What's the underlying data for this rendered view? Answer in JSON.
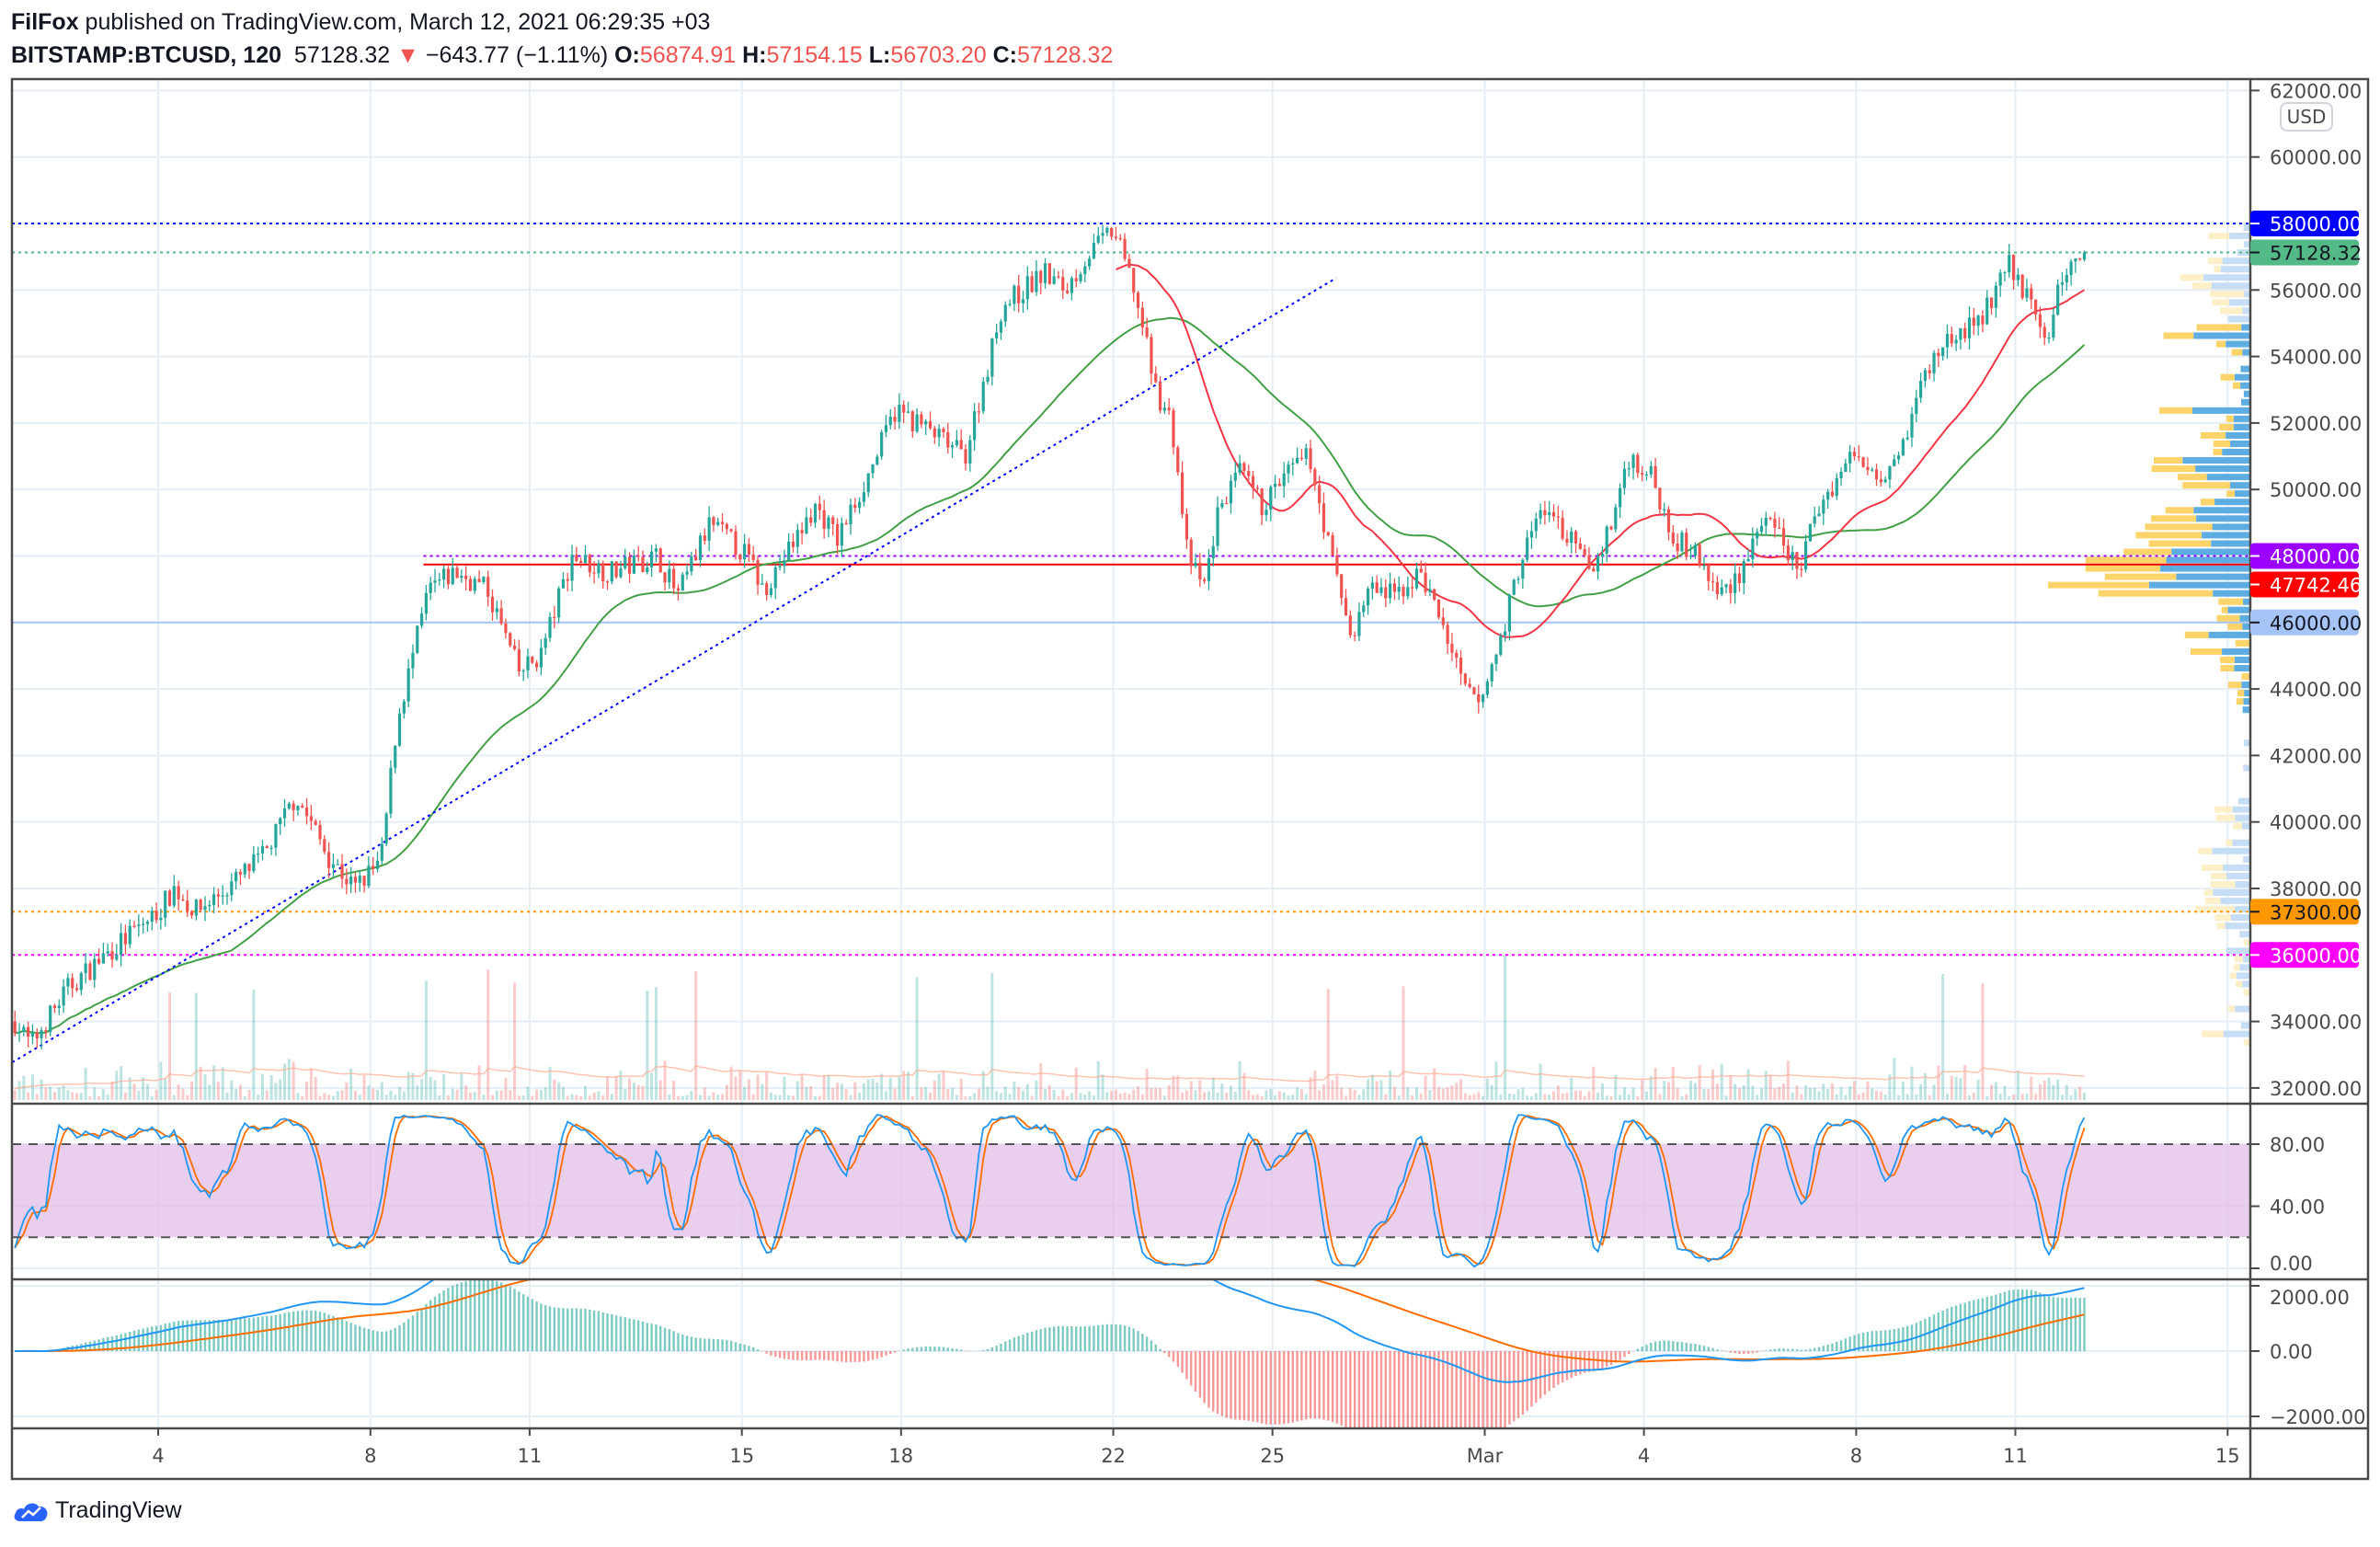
{
  "header": {
    "author": "FilFox",
    "published": " published on TradingView.com, March 12, 2021 06:29:35 +03",
    "symbol": "BITSTAMP:BTCUSD, 120",
    "last": "57128.32",
    "change": "−643.77 (−1.11%)",
    "o_label": "O:",
    "o": "56874.91",
    "h_label": "H:",
    "h": "57154.15",
    "l_label": "L:",
    "l": "56703.20",
    "c_label": "C:",
    "c": "57128.32"
  },
  "currency_badge": "USD",
  "brand": "TradingView",
  "colors": {
    "up": "#26a69a",
    "down": "#ef5350",
    "ma_green": "#43a047",
    "ma_red": "#f23645",
    "stoch_k": "#2196f3",
    "stoch_d": "#ff6d00",
    "band": "#e1bee7"
  },
  "chart_data": {
    "type": "candlestick",
    "price_axis_labels": [
      "62000.00",
      "60000.00",
      "58000.00",
      "56000.00",
      "54000.00",
      "52000.00",
      "50000.00",
      "48000.00",
      "46000.00",
      "44000.00",
      "42000.00",
      "40000.00",
      "38000.00",
      "36000.00",
      "34000.00",
      "32000.00"
    ],
    "price_axis_values": [
      62000,
      60000,
      58000,
      56000,
      54000,
      52000,
      50000,
      48000,
      46000,
      44000,
      42000,
      40000,
      38000,
      36000,
      34000,
      32000
    ],
    "time_axis": [
      {
        "day": 4,
        "label": "4"
      },
      {
        "day": 8,
        "label": "8"
      },
      {
        "day": 11,
        "label": "11"
      },
      {
        "day": 15,
        "label": "15"
      },
      {
        "day": 18,
        "label": "18"
      },
      {
        "day": 22,
        "label": "22"
      },
      {
        "day": 25,
        "label": "25"
      },
      {
        "day": 29,
        "label": "Mar"
      },
      {
        "day": 32,
        "label": "4"
      },
      {
        "day": 36,
        "label": "8"
      },
      {
        "day": 39,
        "label": "11"
      },
      {
        "day": 43,
        "label": "15"
      }
    ],
    "price_path": [
      [
        1.3,
        34000
      ],
      [
        1.6,
        33300
      ],
      [
        2.3,
        35000
      ],
      [
        3.0,
        36000
      ],
      [
        4.0,
        37300
      ],
      [
        4.3,
        38000
      ],
      [
        4.7,
        37300
      ],
      [
        5.3,
        38000
      ],
      [
        6.0,
        39000
      ],
      [
        6.6,
        40800
      ],
      [
        7.2,
        39000
      ],
      [
        7.7,
        38000
      ],
      [
        8.2,
        38800
      ],
      [
        8.5,
        43000
      ],
      [
        9.1,
        47000
      ],
      [
        9.6,
        47500
      ],
      [
        10.2,
        47000
      ],
      [
        10.8,
        44500
      ],
      [
        11.2,
        45000
      ],
      [
        11.8,
        48000
      ],
      [
        12.5,
        47500
      ],
      [
        13.4,
        48000
      ],
      [
        13.8,
        46800
      ],
      [
        14.4,
        49000
      ],
      [
        15.1,
        48000
      ],
      [
        15.4,
        47000
      ],
      [
        15.9,
        48200
      ],
      [
        16.4,
        49500
      ],
      [
        16.8,
        48500
      ],
      [
        17.4,
        50500
      ],
      [
        17.9,
        52400
      ],
      [
        18.5,
        51800
      ],
      [
        19.2,
        51000
      ],
      [
        19.6,
        53500
      ],
      [
        19.9,
        55500
      ],
      [
        20.7,
        56500
      ],
      [
        21.1,
        56000
      ],
      [
        21.5,
        57000
      ],
      [
        22.0,
        57800
      ],
      [
        22.4,
        56000
      ],
      [
        22.8,
        53000
      ],
      [
        23.1,
        52000
      ],
      [
        23.4,
        48000
      ],
      [
        23.7,
        47000
      ],
      [
        24.0,
        49500
      ],
      [
        24.4,
        50500
      ],
      [
        24.8,
        49500
      ],
      [
        25.3,
        50500
      ],
      [
        25.7,
        51000
      ],
      [
        26.1,
        48000
      ],
      [
        26.5,
        45500
      ],
      [
        26.8,
        47000
      ],
      [
        27.3,
        46800
      ],
      [
        27.8,
        47500
      ],
      [
        28.3,
        45500
      ],
      [
        28.6,
        44000
      ],
      [
        28.9,
        43500
      ],
      [
        29.3,
        45500
      ],
      [
        29.7,
        48000
      ],
      [
        30.1,
        49500
      ],
      [
        30.6,
        48500
      ],
      [
        31.0,
        47500
      ],
      [
        31.4,
        49000
      ],
      [
        31.7,
        51000
      ],
      [
        32.1,
        50500
      ],
      [
        32.6,
        48500
      ],
      [
        33.0,
        48000
      ],
      [
        33.4,
        46800
      ],
      [
        33.8,
        47500
      ],
      [
        34.2,
        49000
      ],
      [
        34.6,
        48500
      ],
      [
        34.9,
        47500
      ],
      [
        35.3,
        49500
      ],
      [
        35.9,
        51000
      ],
      [
        36.5,
        50500
      ],
      [
        36.9,
        51500
      ],
      [
        37.3,
        53500
      ],
      [
        37.7,
        54500
      ],
      [
        38.3,
        55000
      ],
      [
        38.9,
        56800
      ],
      [
        39.3,
        55500
      ],
      [
        39.6,
        54500
      ],
      [
        39.9,
        56500
      ],
      [
        40.3,
        57128.32
      ]
    ],
    "horizontal_levels": [
      {
        "price": 58000,
        "label": "58000.00",
        "color": "#0000ff",
        "style": "dotted",
        "tag_bg": "#0000ff",
        "tag_fg": "#ffffff"
      },
      {
        "price": 57128.32,
        "label": "57128.32",
        "color": "#53b987",
        "style": "dotted",
        "tag_bg": "#53b987",
        "tag_fg": "#131722"
      },
      {
        "price": 48000,
        "label": "48000.00",
        "color": "#9c00ff",
        "style": "dotted",
        "tag_bg": "#9c00ff",
        "tag_fg": "#ffffff",
        "from_day": 9.0
      },
      {
        "price": 47742.46,
        "label": "47742.46",
        "color": "#ff0000",
        "style": "solid",
        "tag_bg": "#ff0000",
        "tag_fg": "#ffffff",
        "from_day": 9.0
      },
      {
        "price": 46000,
        "label": "46000.00",
        "color": "#a5c3f5",
        "style": "solid",
        "tag_bg": "#a5c3f5",
        "tag_fg": "#131722"
      },
      {
        "price": 37300,
        "label": "37300.00",
        "color": "#ff9800",
        "style": "dotted",
        "tag_bg": "#ff9800",
        "tag_fg": "#131722"
      },
      {
        "price": 36000,
        "label": "36000.00",
        "color": "#ff00ff",
        "style": "dotted",
        "tag_bg": "#ff00ff",
        "tag_fg": "#ffffff"
      }
    ],
    "trendline": {
      "from": [
        1.25,
        32770
      ],
      "to": [
        26.2,
        56360
      ],
      "color": "#0000ff"
    },
    "stoch": {
      "labels": [
        "80.00",
        "40.00",
        "0.00"
      ],
      "values": [
        80,
        40,
        0
      ],
      "upper": 80,
      "lower": 20
    },
    "macd": {
      "labels": [
        "2000.00",
        "0.00",
        "−2000.00"
      ],
      "values": [
        2000,
        0,
        -2000
      ]
    }
  }
}
